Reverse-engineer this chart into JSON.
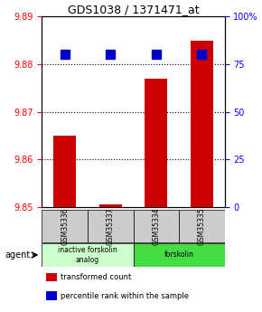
{
  "title": "GDS1038 / 1371471_at",
  "samples": [
    "GSM35336",
    "GSM35337",
    "GSM35334",
    "GSM35335"
  ],
  "bar_values": [
    9.865,
    9.8505,
    9.877,
    9.885
  ],
  "bar_base": 9.85,
  "percentile_values": [
    80,
    80,
    80,
    80
  ],
  "percentile_base": 0,
  "bar_color": "#cc0000",
  "percentile_color": "#0000cc",
  "ylim_left": [
    9.85,
    9.89
  ],
  "ylim_right": [
    0,
    100
  ],
  "yticks_left": [
    9.85,
    9.86,
    9.87,
    9.88,
    9.89
  ],
  "yticks_right": [
    0,
    25,
    50,
    75,
    100
  ],
  "grid_values": [
    9.86,
    9.87,
    9.88
  ],
  "agent_groups": [
    {
      "label": "inactive forskolin\nanalog",
      "span": [
        0,
        2
      ],
      "color": "#ccffcc"
    },
    {
      "label": "forskolin",
      "span": [
        2,
        4
      ],
      "color": "#44dd44"
    }
  ],
  "legend_items": [
    {
      "color": "#cc0000",
      "label": "transformed count"
    },
    {
      "color": "#0000cc",
      "label": "percentile rank within the sample"
    }
  ],
  "agent_label": "agent",
  "background_color": "#ffffff",
  "plot_bg": "#ffffff",
  "bar_width": 0.5,
  "percentile_marker_size": 7
}
